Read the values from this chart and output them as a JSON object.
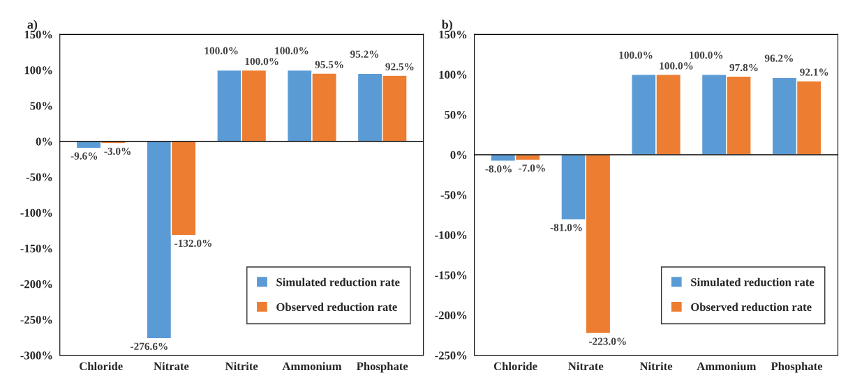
{
  "chart_data": [
    {
      "type": "bar",
      "title": "a)",
      "categories": [
        "Chloride",
        "Nitrate",
        "Nitrite",
        "Ammonium",
        "Phosphate"
      ],
      "series": [
        {
          "name": "Simulated reduction rate",
          "color": "#5b9bd5",
          "values": [
            -9.6,
            -276.6,
            100.0,
            100.0,
            95.2
          ],
          "value_labels": [
            "-9.6%",
            "-276.6%",
            "100.0%",
            "100.0%",
            "95.2%"
          ]
        },
        {
          "name": "Observed reduction rate",
          "color": "#ed7d31",
          "values": [
            -3.0,
            -132.0,
            100.0,
            95.5,
            92.5
          ],
          "value_labels": [
            "-3.0%",
            "-132.0%",
            "100.0%",
            "95.5%",
            "92.5%"
          ]
        }
      ],
      "ylim": [
        -300,
        150
      ],
      "yticks": [
        {
          "value": -300,
          "label": "-300%"
        },
        {
          "value": -250,
          "label": "-250%"
        },
        {
          "value": -200,
          "label": "-200%"
        },
        {
          "value": -150,
          "label": "-150%"
        },
        {
          "value": -100,
          "label": "-100%"
        },
        {
          "value": -50,
          "label": "-50%"
        },
        {
          "value": 0,
          "label": "0%"
        },
        {
          "value": 50,
          "label": "50%"
        },
        {
          "value": 100,
          "label": "100%"
        },
        {
          "value": 150,
          "label": "150%"
        }
      ],
      "ref_lines": [
        {
          "axis": "y",
          "value": 0,
          "color": "#000000"
        }
      ],
      "grid": false,
      "legend": "bottom right"
    },
    {
      "type": "bar",
      "title": "b)",
      "categories": [
        "Chloride",
        "Nitrate",
        "Nitrite",
        "Ammonium",
        "Phosphate"
      ],
      "series": [
        {
          "name": "Simulated reduction rate",
          "color": "#5b9bd5",
          "values": [
            -8.0,
            -81.0,
            100.0,
            100.0,
            96.2
          ],
          "value_labels": [
            "-8.0%",
            "-81.0%",
            "100.0%",
            "100.0%",
            "96.2%"
          ]
        },
        {
          "name": "Observed reduction rate",
          "color": "#ed7d31",
          "values": [
            -7.0,
            -223.0,
            100.0,
            97.8,
            92.1
          ],
          "value_labels": [
            "-7.0%",
            "-223.0%",
            "100.0%",
            "97.8%",
            "92.1%"
          ]
        }
      ],
      "ylim": [
        -250,
        150
      ],
      "yticks": [
        {
          "value": -250,
          "label": "-250%"
        },
        {
          "value": -200,
          "label": "-200%"
        },
        {
          "value": -150,
          "label": "-150%"
        },
        {
          "value": -100,
          "label": "-100%"
        },
        {
          "value": -50,
          "label": "-50%"
        },
        {
          "value": 0,
          "label": "0%"
        },
        {
          "value": 50,
          "label": "50%"
        },
        {
          "value": 100,
          "label": "100%"
        },
        {
          "value": 150,
          "label": "150%"
        }
      ],
      "ref_lines": [
        {
          "axis": "y",
          "value": 0,
          "color": "#000000"
        }
      ],
      "grid": false,
      "legend": "bottom right"
    }
  ]
}
